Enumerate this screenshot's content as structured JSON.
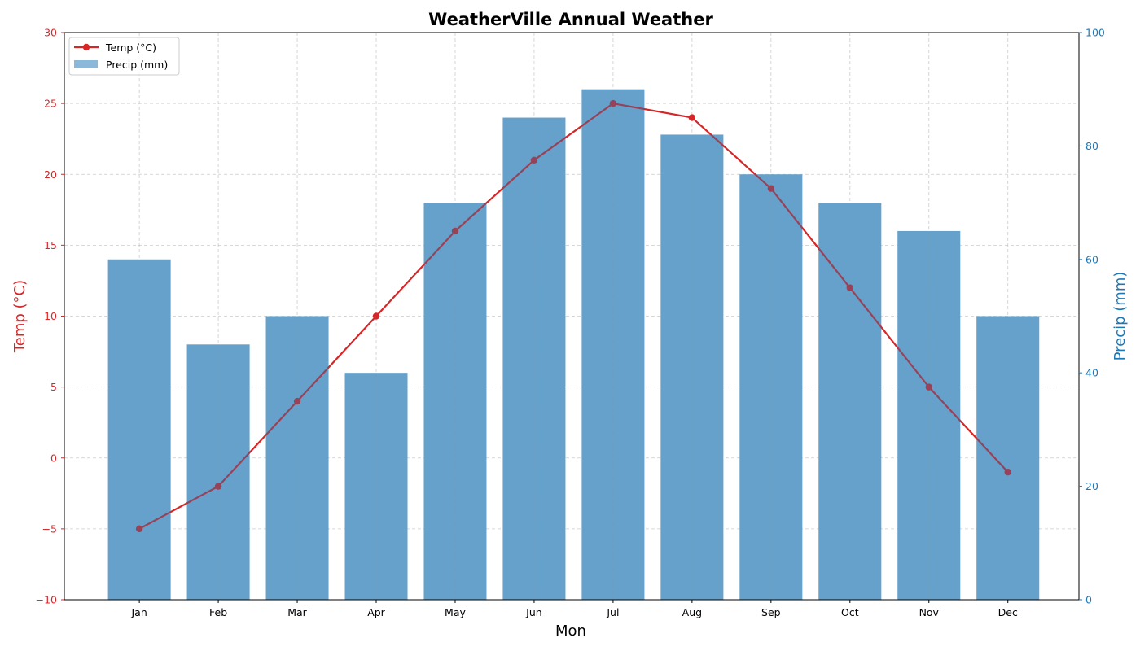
{
  "colors": {
    "temp": "#d62728",
    "precip": "#1f77b4",
    "bar_fill": "#8bb7d8",
    "grid": "#cccccc",
    "axis": "#000000"
  },
  "chart_data": {
    "type": "bar",
    "title": "WeatherVille Annual Weather",
    "xlabel": "Mon",
    "categories": [
      "Jan",
      "Feb",
      "Mar",
      "Apr",
      "May",
      "Jun",
      "Jul",
      "Aug",
      "Sep",
      "Oct",
      "Nov",
      "Dec"
    ],
    "series": [
      {
        "name": "Temp (°C)",
        "type": "line",
        "axis": "left",
        "values": [
          -5,
          -2,
          4,
          10,
          16,
          21,
          25,
          24,
          19,
          12,
          5,
          -1
        ]
      },
      {
        "name": "Precip (mm)",
        "type": "bar",
        "axis": "right",
        "values": [
          60,
          45,
          50,
          40,
          70,
          85,
          90,
          82,
          75,
          70,
          65,
          50
        ]
      }
    ],
    "y_left": {
      "label": "Temp (°C)",
      "lim": [
        -10,
        30
      ],
      "ticks": [
        -10,
        -5,
        0,
        5,
        10,
        15,
        20,
        25,
        30
      ]
    },
    "y_right": {
      "label": "Precip (mm)",
      "lim": [
        0,
        100
      ],
      "ticks": [
        0,
        20,
        40,
        60,
        80,
        100
      ]
    },
    "grid": true,
    "legend": "top-left"
  }
}
